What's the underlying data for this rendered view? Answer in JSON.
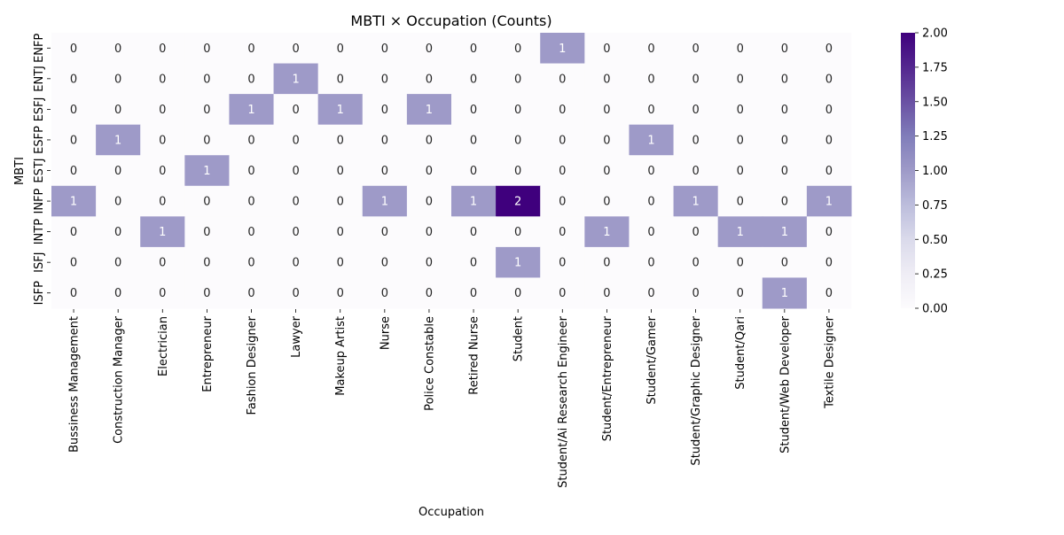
{
  "chart_data": {
    "type": "heatmap",
    "title": "MBTI × Occupation (Counts)",
    "xlabel": "Occupation",
    "ylabel": "MBTI",
    "x_categories": [
      "Bussiness Management",
      "Construction Manager",
      "Electrician",
      "Entrepreneur",
      "Fashion Designer",
      "Lawyer",
      "Makeup Artist",
      "Nurse",
      "Police Constable",
      "Retired Nurse",
      "Student",
      "Student/Ai Research Engineer",
      "Student/Entrepreneur",
      "Student/Gamer",
      "Student/Graphic Designer",
      "Student/Qari",
      "Student/Web Developer",
      "Textile Designer"
    ],
    "y_categories": [
      "ENFP",
      "ENTJ",
      "ESFJ",
      "ESFP",
      "ESTJ",
      "INFP",
      "INTP",
      "ISFJ",
      "ISFP"
    ],
    "values": [
      [
        0,
        0,
        0,
        0,
        0,
        0,
        0,
        0,
        0,
        0,
        0,
        1,
        0,
        0,
        0,
        0,
        0,
        0
      ],
      [
        0,
        0,
        0,
        0,
        0,
        1,
        0,
        0,
        0,
        0,
        0,
        0,
        0,
        0,
        0,
        0,
        0,
        0
      ],
      [
        0,
        0,
        0,
        0,
        1,
        0,
        1,
        0,
        1,
        0,
        0,
        0,
        0,
        0,
        0,
        0,
        0,
        0
      ],
      [
        0,
        1,
        0,
        0,
        0,
        0,
        0,
        0,
        0,
        0,
        0,
        0,
        0,
        1,
        0,
        0,
        0,
        0
      ],
      [
        0,
        0,
        0,
        1,
        0,
        0,
        0,
        0,
        0,
        0,
        0,
        0,
        0,
        0,
        0,
        0,
        0,
        0
      ],
      [
        1,
        0,
        0,
        0,
        0,
        0,
        0,
        1,
        0,
        1,
        2,
        0,
        0,
        0,
        1,
        0,
        0,
        1
      ],
      [
        0,
        0,
        1,
        0,
        0,
        0,
        0,
        0,
        0,
        0,
        0,
        0,
        1,
        0,
        0,
        1,
        1,
        0
      ],
      [
        0,
        0,
        0,
        0,
        0,
        0,
        0,
        0,
        0,
        0,
        1,
        0,
        0,
        0,
        0,
        0,
        0,
        0
      ],
      [
        0,
        0,
        0,
        0,
        0,
        0,
        0,
        0,
        0,
        0,
        0,
        0,
        0,
        0,
        0,
        0,
        1,
        0
      ]
    ],
    "colormap": "Purples",
    "colors": [
      "#fcfbfd",
      "#efedf5",
      "#dadaeb",
      "#bcbddc",
      "#9e9ac8",
      "#807dba",
      "#6a51a3",
      "#54278f",
      "#3f007d"
    ],
    "vmin": 0,
    "vmax": 2,
    "colorbar_ticks": [
      "0.00",
      "0.25",
      "0.50",
      "0.75",
      "1.00",
      "1.25",
      "1.50",
      "1.75",
      "2.00"
    ],
    "annotations": true,
    "grid": false
  }
}
